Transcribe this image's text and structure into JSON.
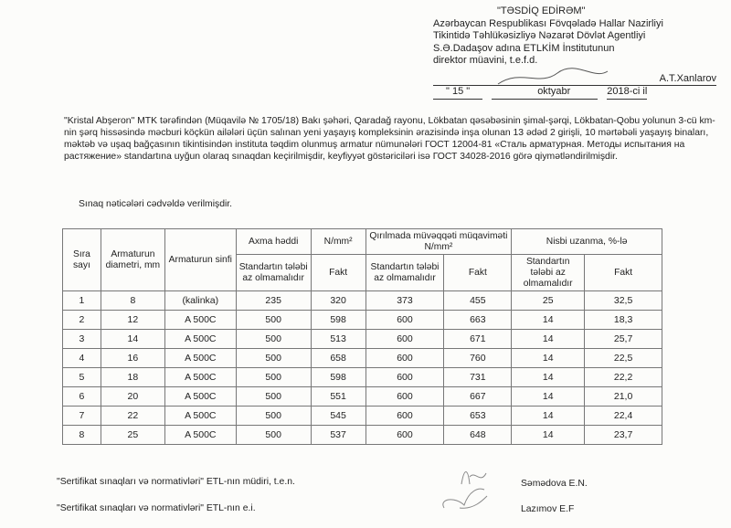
{
  "approval": {
    "title": "\"TƏSDİQ EDİRƏM\"",
    "lines": [
      "Azərbaycan Respublikası Fövqəladə Hallar Nazirliyi",
      "Tikintidə Təhlükəsizliyə Nəzarət Dövlət Agentliyi",
      "S.Ə.Dadaşov adına ETLKİM İnstitutunun",
      "direktor müavini, t.e.f.d."
    ],
    "signer": "A.T.Xanlarov",
    "day": "15",
    "month": "oktyabr",
    "year": "2018-ci il"
  },
  "body": "\"Kristal Abşeron\" MTK tərəfindən (Müqavilə № 1705/18) Bakı şəhəri, Qaradağ rayonu, Lökbatan qəsəbəsinin şimal-şərqi, Lökbatan-Qobu yolunun 3-cü km-nin şərq hissəsində məcburi köçkün ailələri üçün salınan yeni yaşayış kompleksinin ərazisində inşa olunan 13 ədəd 2 girişli, 10 mərtəbəli yaşayış binaları, məktəb və uşaq bağçasının tikintisindən instituta təqdim olunmuş armatur nümunələri ГОСТ 12004-81 «Сталь арматурная. Методы испытания на растяжение» standartına uyğun olaraq sınaqdan keçirilmişdir, keyfiyyət göstəriciləri isə ГОСТ 34028-2016 görə qiymətləndirilmişdir.",
  "intro": "Sınaq nəticələri cədvəldə verilmişdir.",
  "table": {
    "h_no": "Sıra sayı",
    "h_diam": "Armaturun diametri, mm",
    "h_class": "Armaturun sinfi",
    "h_yield": "Axma həddi",
    "h_yield_unit": "N/mm²",
    "h_tensile": "Qırılmada müvəqqəti müqaviməti N/mm²",
    "h_elong": "Nisbi uzanma, %-lə",
    "h_std": "Standartın tələbi az olmamalıdır",
    "h_fact": "Fakt",
    "rows": [
      [
        "1",
        "8",
        "(kalinka)",
        "235",
        "320",
        "373",
        "455",
        "25",
        "32,5"
      ],
      [
        "2",
        "12",
        "A 500C",
        "500",
        "598",
        "600",
        "663",
        "14",
        "18,3"
      ],
      [
        "3",
        "14",
        "A 500C",
        "500",
        "513",
        "600",
        "671",
        "14",
        "25,7"
      ],
      [
        "4",
        "16",
        "A 500C",
        "500",
        "658",
        "600",
        "760",
        "14",
        "22,5"
      ],
      [
        "5",
        "18",
        "A 500C",
        "500",
        "598",
        "600",
        "731",
        "14",
        "22,2"
      ],
      [
        "6",
        "20",
        "A 500C",
        "500",
        "551",
        "600",
        "667",
        "14",
        "21,0"
      ],
      [
        "7",
        "22",
        "A 500C",
        "500",
        "545",
        "600",
        "653",
        "14",
        "22,4"
      ],
      [
        "8",
        "25",
        "A 500C",
        "500",
        "537",
        "600",
        "648",
        "14",
        "23,7"
      ]
    ]
  },
  "footer": [
    {
      "role": "\"Sertifikat sınaqları və normativləri\" ETL-nın müdiri, t.e.n.",
      "name": "Səmədova E.N."
    },
    {
      "role": "\"Sertifikat sınaqları və normativləri\" ETL-nın e.i.",
      "name": "Lazımov E.F"
    }
  ]
}
